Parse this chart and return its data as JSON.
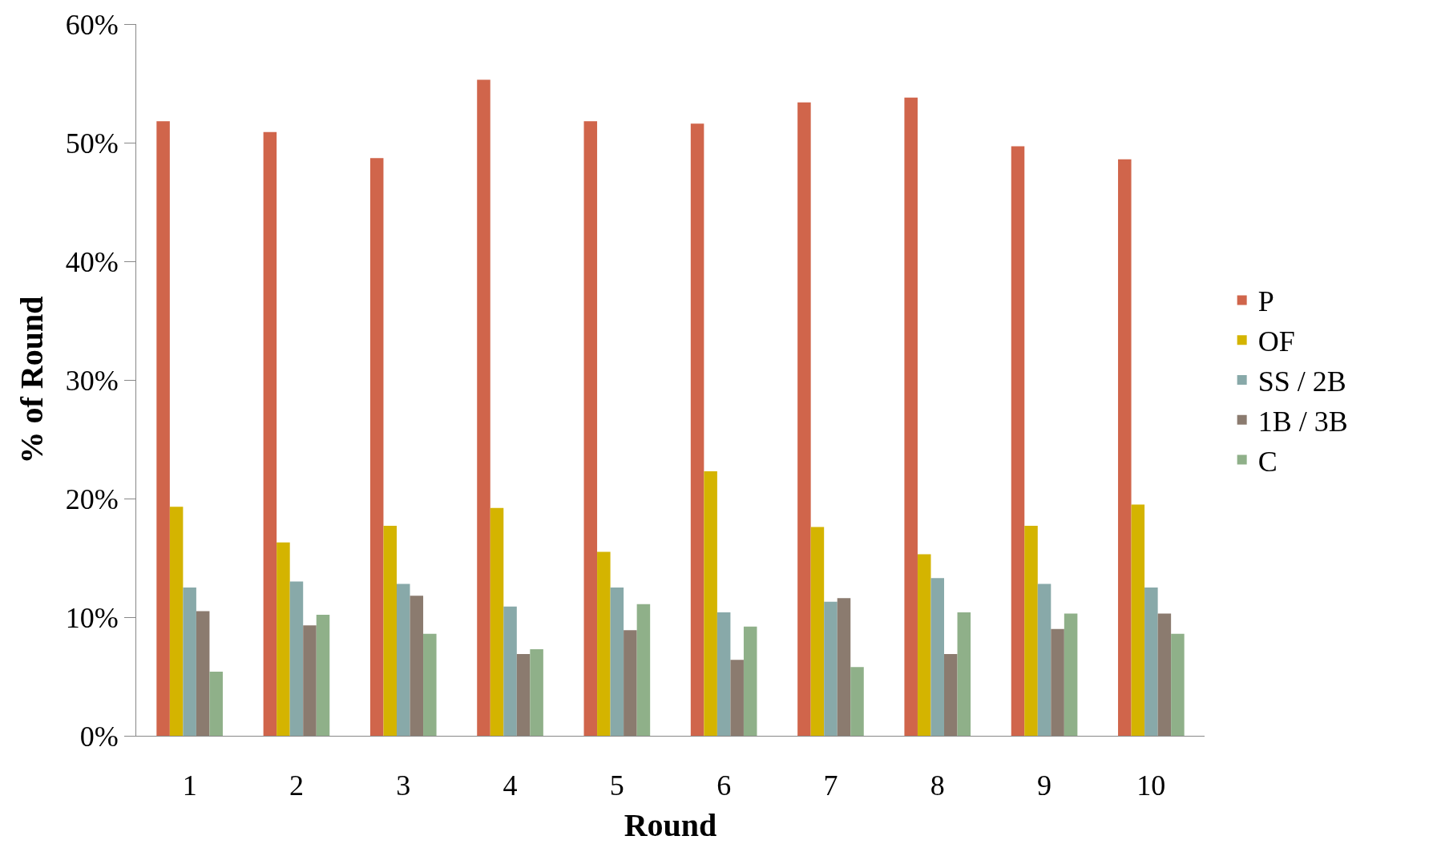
{
  "chart_data": {
    "type": "bar",
    "xlabel": "Round",
    "ylabel": "% of Round",
    "categories": [
      "1",
      "2",
      "3",
      "4",
      "5",
      "6",
      "7",
      "8",
      "9",
      "10"
    ],
    "series": [
      {
        "name": "P",
        "color": "#d0654b",
        "values": [
          51.8,
          50.9,
          48.7,
          55.3,
          51.8,
          51.6,
          53.4,
          53.8,
          49.7,
          48.6
        ]
      },
      {
        "name": "OF",
        "color": "#d4b400",
        "values": [
          19.3,
          16.3,
          17.7,
          19.2,
          15.5,
          22.3,
          17.6,
          15.3,
          17.7,
          19.5
        ]
      },
      {
        "name": "SS / 2B",
        "color": "#88a9a9",
        "values": [
          12.5,
          13.0,
          12.8,
          10.9,
          12.5,
          10.4,
          11.3,
          13.3,
          12.8,
          12.5
        ]
      },
      {
        "name": "1B / 3B",
        "color": "#8b7b6f",
        "values": [
          10.5,
          9.3,
          11.8,
          6.9,
          8.9,
          6.4,
          11.6,
          6.9,
          9.0,
          10.3
        ]
      },
      {
        "name": "C",
        "color": "#8fb089",
        "values": [
          5.4,
          10.2,
          8.6,
          7.3,
          11.1,
          9.2,
          5.8,
          10.4,
          10.3,
          8.6
        ]
      }
    ],
    "ylim": [
      0,
      60
    ],
    "yticks": [
      {
        "value": 0,
        "label": "0%"
      },
      {
        "value": 10,
        "label": "10%"
      },
      {
        "value": 20,
        "label": "20%"
      },
      {
        "value": 30,
        "label": "30%"
      },
      {
        "value": 40,
        "label": "40%"
      },
      {
        "value": 50,
        "label": "50%"
      },
      {
        "value": 60,
        "label": "60%"
      }
    ],
    "legend": "right"
  }
}
